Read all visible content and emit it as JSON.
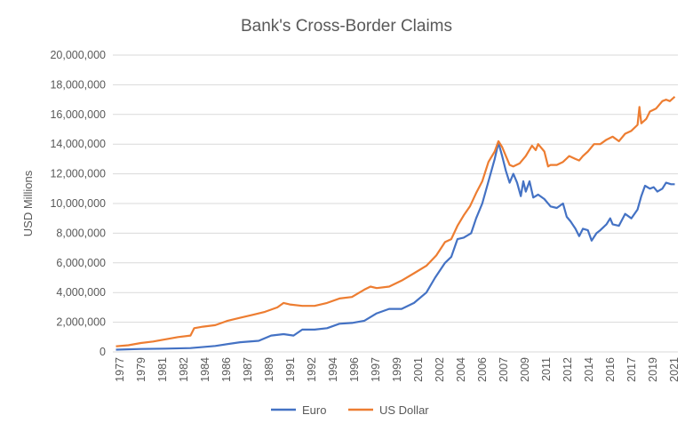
{
  "chart_data": {
    "type": "line",
    "title": "Bank's Cross-Border Claims",
    "xlabel": "",
    "ylabel": "USD Millions",
    "ylim": [
      0,
      20000000
    ],
    "yticks": [
      "0",
      "2,000,000",
      "4,000,000",
      "6,000,000",
      "8,000,000",
      "10,000,000",
      "12,000,000",
      "14,000,000",
      "16,000,000",
      "18,000,000",
      "20,000,000"
    ],
    "xticks": [
      "1977",
      "1979",
      "1981",
      "1982",
      "1984",
      "1986",
      "1987",
      "1989",
      "1991",
      "1992",
      "1994",
      "1996",
      "1997",
      "1999",
      "2001",
      "2002",
      "2004",
      "2006",
      "2007",
      "2009",
      "2011",
      "2012",
      "2014",
      "2016",
      "2017",
      "2019",
      "2021"
    ],
    "grid": true,
    "legend_position": "bottom",
    "colors": {
      "Euro": "#4472c4",
      "US Dollar": "#ed7d31"
    },
    "series": [
      {
        "name": "Euro",
        "points": [
          [
            1977.0,
            150000
          ],
          [
            1979.0,
            200000
          ],
          [
            1981.0,
            220000
          ],
          [
            1983.0,
            260000
          ],
          [
            1985.0,
            400000
          ],
          [
            1987.0,
            650000
          ],
          [
            1988.5,
            750000
          ],
          [
            1989.5,
            1100000
          ],
          [
            1990.5,
            1200000
          ],
          [
            1991.3,
            1100000
          ],
          [
            1992.0,
            1500000
          ],
          [
            1993.0,
            1500000
          ],
          [
            1994.0,
            1600000
          ],
          [
            1995.0,
            1900000
          ],
          [
            1996.0,
            1950000
          ],
          [
            1997.0,
            2100000
          ],
          [
            1998.0,
            2600000
          ],
          [
            1999.0,
            2900000
          ],
          [
            2000.0,
            2900000
          ],
          [
            2001.0,
            3300000
          ],
          [
            2002.0,
            4000000
          ],
          [
            2002.7,
            5000000
          ],
          [
            2003.5,
            6000000
          ],
          [
            2004.0,
            6400000
          ],
          [
            2004.5,
            7600000
          ],
          [
            2005.0,
            7700000
          ],
          [
            2005.6,
            8000000
          ],
          [
            2006.0,
            9000000
          ],
          [
            2006.5,
            10000000
          ],
          [
            2007.0,
            11500000
          ],
          [
            2007.5,
            13000000
          ],
          [
            2007.8,
            14100000
          ],
          [
            2008.1,
            13200000
          ],
          [
            2008.4,
            12200000
          ],
          [
            2008.7,
            11400000
          ],
          [
            2009.0,
            12000000
          ],
          [
            2009.3,
            11400000
          ],
          [
            2009.6,
            10500000
          ],
          [
            2009.8,
            11500000
          ],
          [
            2010.0,
            10800000
          ],
          [
            2010.3,
            11500000
          ],
          [
            2010.6,
            10400000
          ],
          [
            2011.0,
            10600000
          ],
          [
            2011.5,
            10300000
          ],
          [
            2012.0,
            9800000
          ],
          [
            2012.5,
            9700000
          ],
          [
            2013.0,
            10000000
          ],
          [
            2013.3,
            9100000
          ],
          [
            2013.6,
            8800000
          ],
          [
            2014.0,
            8300000
          ],
          [
            2014.3,
            7800000
          ],
          [
            2014.6,
            8300000
          ],
          [
            2015.0,
            8200000
          ],
          [
            2015.3,
            7500000
          ],
          [
            2015.7,
            8000000
          ],
          [
            2016.0,
            8200000
          ],
          [
            2016.5,
            8600000
          ],
          [
            2016.8,
            9000000
          ],
          [
            2017.0,
            8600000
          ],
          [
            2017.5,
            8500000
          ],
          [
            2018.0,
            9300000
          ],
          [
            2018.5,
            9000000
          ],
          [
            2019.0,
            9600000
          ],
          [
            2019.3,
            10500000
          ],
          [
            2019.6,
            11200000
          ],
          [
            2020.0,
            11000000
          ],
          [
            2020.3,
            11100000
          ],
          [
            2020.6,
            10800000
          ],
          [
            2021.0,
            11000000
          ],
          [
            2021.3,
            11400000
          ],
          [
            2021.7,
            11300000
          ],
          [
            2022.0,
            11300000
          ]
        ]
      },
      {
        "name": "US Dollar",
        "points": [
          [
            1977.0,
            380000
          ],
          [
            1978.0,
            450000
          ],
          [
            1979.0,
            600000
          ],
          [
            1980.0,
            700000
          ],
          [
            1981.0,
            850000
          ],
          [
            1982.0,
            1000000
          ],
          [
            1983.0,
            1100000
          ],
          [
            1983.3,
            1600000
          ],
          [
            1984.0,
            1700000
          ],
          [
            1985.0,
            1800000
          ],
          [
            1986.0,
            2100000
          ],
          [
            1987.0,
            2300000
          ],
          [
            1988.0,
            2500000
          ],
          [
            1989.0,
            2700000
          ],
          [
            1990.0,
            3000000
          ],
          [
            1990.5,
            3300000
          ],
          [
            1991.0,
            3200000
          ],
          [
            1992.0,
            3100000
          ],
          [
            1993.0,
            3100000
          ],
          [
            1994.0,
            3300000
          ],
          [
            1995.0,
            3600000
          ],
          [
            1996.0,
            3700000
          ],
          [
            1997.0,
            4200000
          ],
          [
            1997.5,
            4400000
          ],
          [
            1998.0,
            4300000
          ],
          [
            1999.0,
            4400000
          ],
          [
            2000.0,
            4800000
          ],
          [
            2001.0,
            5300000
          ],
          [
            2002.0,
            5800000
          ],
          [
            2002.8,
            6500000
          ],
          [
            2003.5,
            7400000
          ],
          [
            2004.0,
            7600000
          ],
          [
            2004.5,
            8500000
          ],
          [
            2005.0,
            9200000
          ],
          [
            2005.5,
            9800000
          ],
          [
            2006.0,
            10700000
          ],
          [
            2006.5,
            11500000
          ],
          [
            2007.0,
            12800000
          ],
          [
            2007.5,
            13500000
          ],
          [
            2007.8,
            14200000
          ],
          [
            2008.1,
            13800000
          ],
          [
            2008.4,
            13200000
          ],
          [
            2008.7,
            12600000
          ],
          [
            2009.0,
            12500000
          ],
          [
            2009.5,
            12700000
          ],
          [
            2010.0,
            13200000
          ],
          [
            2010.5,
            13900000
          ],
          [
            2010.8,
            13600000
          ],
          [
            2011.0,
            14000000
          ],
          [
            2011.5,
            13500000
          ],
          [
            2011.8,
            12500000
          ],
          [
            2012.0,
            12600000
          ],
          [
            2012.5,
            12600000
          ],
          [
            2013.0,
            12800000
          ],
          [
            2013.5,
            13200000
          ],
          [
            2014.0,
            13000000
          ],
          [
            2014.3,
            12900000
          ],
          [
            2014.6,
            13200000
          ],
          [
            2015.0,
            13500000
          ],
          [
            2015.5,
            14000000
          ],
          [
            2016.0,
            14000000
          ],
          [
            2016.5,
            14300000
          ],
          [
            2017.0,
            14500000
          ],
          [
            2017.5,
            14200000
          ],
          [
            2018.0,
            14700000
          ],
          [
            2018.5,
            14900000
          ],
          [
            2019.0,
            15300000
          ],
          [
            2019.15,
            16500000
          ],
          [
            2019.3,
            15400000
          ],
          [
            2019.7,
            15700000
          ],
          [
            2020.0,
            16200000
          ],
          [
            2020.5,
            16400000
          ],
          [
            2021.0,
            16900000
          ],
          [
            2021.3,
            17000000
          ],
          [
            2021.6,
            16900000
          ],
          [
            2022.0,
            17200000
          ]
        ]
      }
    ]
  }
}
